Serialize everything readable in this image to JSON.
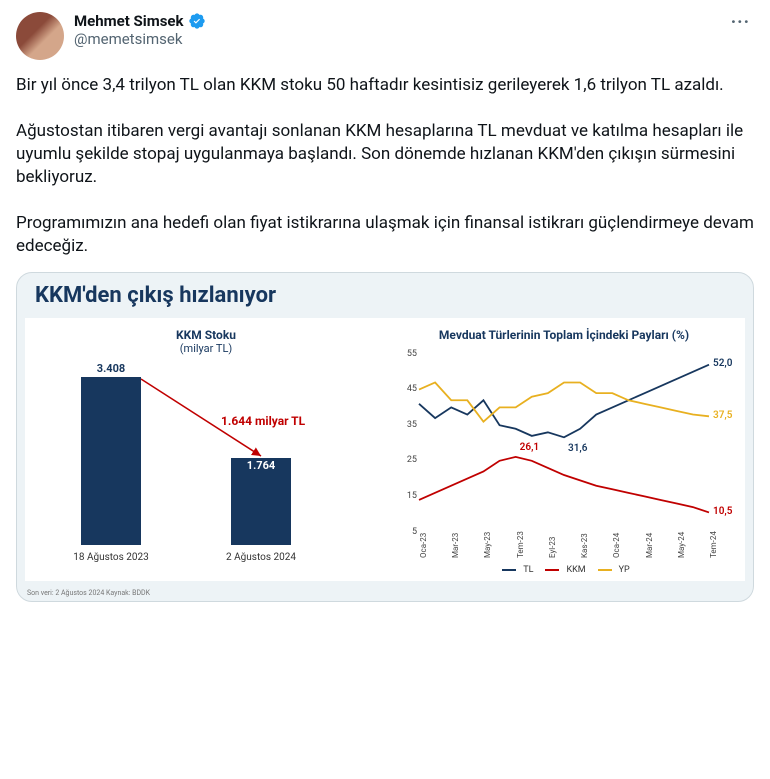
{
  "user": {
    "display_name": "Mehmet Simsek",
    "handle": "@memetsimsek"
  },
  "tweet_text": "Bir yıl önce 3,4 trilyon TL olan KKM stoku 50 haftadır kesintisiz gerileyerek 1,6 trilyon TL azaldı.\n\nAğustostan itibaren vergi avantajı sonlanan KKM hesaplarına TL mevduat ve katılma hesapları ile uyumlu şekilde stopaj uygulanmaya başlandı. Son dönemde hızlanan KKM'den çıkışın sürmesini bekliyoruz.\n\nProgramımızın ana hedefi olan fiyat istikrarına ulaşmak için finansal istikrarı güçlendirmeye devam edeceğiz.",
  "chart": {
    "main_title": "KKM'den çıkış hızlanıyor",
    "left": {
      "title": "KKM Stoku",
      "unit": "(milyar TL)",
      "bars": [
        {
          "label": "18 Ağustos 2023",
          "value": 3408,
          "display": "3.408"
        },
        {
          "label": "2 Ağustos 2024",
          "value": 1764,
          "display": "1.764"
        }
      ],
      "drop_label": "1.644 milyar TL",
      "bar_color": "#17375e",
      "arrow_color": "#c00000"
    },
    "right": {
      "title": "Mevduat Türlerinin Toplam İçindeki Payları (%)",
      "ylim": [
        5,
        55
      ],
      "yticks": [
        5,
        15,
        25,
        35,
        45,
        55
      ],
      "xticks": [
        "Oca-23",
        "Mar-23",
        "May-23",
        "Tem-23",
        "Eyl-23",
        "Kas-23",
        "Oca-24",
        "Mar-24",
        "May-24",
        "Tem-24"
      ],
      "series": {
        "TL": {
          "color": "#17375e",
          "values": [
            41,
            37,
            40,
            38,
            42,
            35,
            34,
            32,
            33,
            31.6,
            34,
            38,
            40,
            42,
            44,
            46,
            48,
            50,
            52
          ],
          "end_label": "52,0",
          "mid_label": "31,6"
        },
        "KKM": {
          "color": "#c00000",
          "values": [
            14,
            16,
            18,
            20,
            22,
            25,
            26.1,
            25,
            23,
            21,
            19.5,
            18,
            17,
            16,
            15,
            14,
            13,
            12,
            10.5
          ],
          "end_label": "10,5",
          "mid_label": "26,1"
        },
        "YP": {
          "color": "#e8b020",
          "values": [
            45,
            47,
            42,
            42,
            36,
            40,
            40,
            43,
            44,
            47,
            47,
            44,
            44,
            42,
            41,
            40,
            39,
            38,
            37.5
          ],
          "end_label": "37,5"
        }
      },
      "legend": [
        "TL",
        "KKM",
        "YP"
      ]
    },
    "footer": "Son veri: 2 Ağustos 2024\nKaynak: BDDK"
  }
}
